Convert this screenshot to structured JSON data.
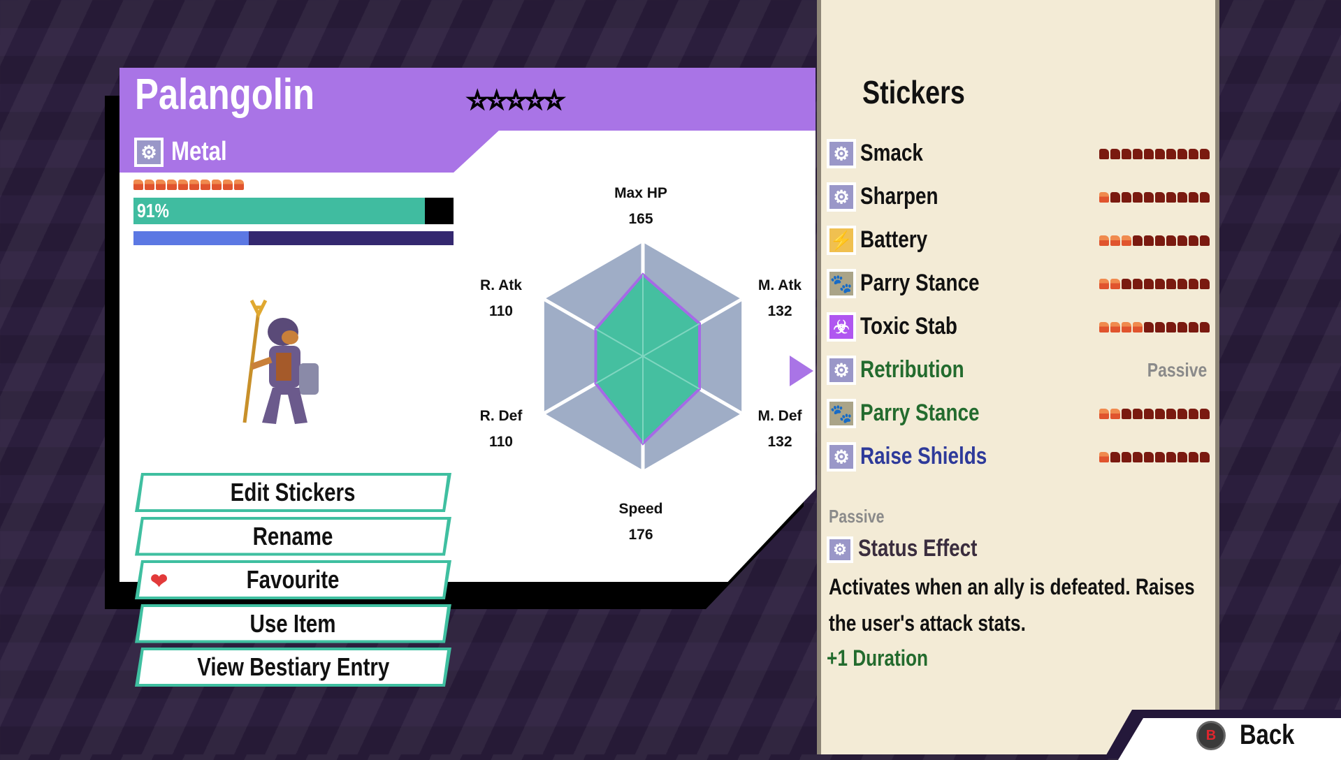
{
  "creature": {
    "name": "Palangolin",
    "rarity_stars": 5,
    "stars_text": "☆☆☆☆☆",
    "type": "Metal",
    "type_icon": "gear-icon",
    "stamina_pips_filled": 10,
    "stamina_pips_total": 10,
    "hp_percent_label": "91%",
    "hp_fraction": 0.91,
    "xp_fraction": 0.36
  },
  "stats": [
    {
      "label": "Max HP",
      "value": 165
    },
    {
      "label": "M. Atk",
      "value": 132
    },
    {
      "label": "M. Def",
      "value": 132
    },
    {
      "label": "Speed",
      "value": 176
    },
    {
      "label": "R. Def",
      "value": 110
    },
    {
      "label": "R. Atk",
      "value": 110
    }
  ],
  "actions": [
    {
      "label": "Edit Stickers"
    },
    {
      "label": "Rename"
    },
    {
      "label": "Favourite",
      "icon": "heart-icon"
    },
    {
      "label": "Use Item"
    },
    {
      "label": "View Bestiary Entry"
    }
  ],
  "stickers": {
    "title": "Stickers",
    "items": [
      {
        "name": "Smack",
        "icon": "gear-icon",
        "icon_color": "#9a97c8",
        "name_color": "#111111",
        "ap_filled": 0,
        "ap_total": 10
      },
      {
        "name": "Sharpen",
        "icon": "gear-icon",
        "icon_color": "#9a97c8",
        "name_color": "#111111",
        "ap_filled": 1,
        "ap_total": 10
      },
      {
        "name": "Battery",
        "icon": "lightning-icon",
        "icon_color": "#f0c050",
        "name_color": "#111111",
        "ap_filled": 3,
        "ap_total": 10
      },
      {
        "name": "Parry Stance",
        "icon": "paw-icon",
        "icon_color": "#aaa488",
        "name_color": "#111111",
        "ap_filled": 2,
        "ap_total": 10
      },
      {
        "name": "Toxic Stab",
        "icon": "biohazard-icon",
        "icon_color": "#b056f0",
        "name_color": "#111111",
        "ap_filled": 4,
        "ap_total": 10
      },
      {
        "name": "Retribution",
        "icon": "gear-icon",
        "icon_color": "#9a97c8",
        "name_color": "#236b2e",
        "passive_label": "Passive",
        "selected": true
      },
      {
        "name": "Parry Stance",
        "icon": "paw-icon",
        "icon_color": "#aaa488",
        "name_color": "#236b2e",
        "ap_filled": 2,
        "ap_total": 10
      },
      {
        "name": "Raise Shields",
        "icon": "gear-icon",
        "icon_color": "#9a97c8",
        "name_color": "#2e3a9a",
        "ap_filled": 1,
        "ap_total": 10
      }
    ]
  },
  "detail": {
    "category": "Passive",
    "effect_type": "Status Effect",
    "description_line1": "Activates when an ally is defeated. Raises",
    "description_line2": "the user's attack stats.",
    "bonus": "+1 Duration"
  },
  "footer": {
    "button_glyph": "B",
    "back_label": "Back"
  },
  "colors": {
    "header": "#a974e6",
    "hp": "#40bca0",
    "xp": "#5c78e3",
    "radar_fill": "#45bfa0",
    "panel": "#f3ebd6"
  }
}
